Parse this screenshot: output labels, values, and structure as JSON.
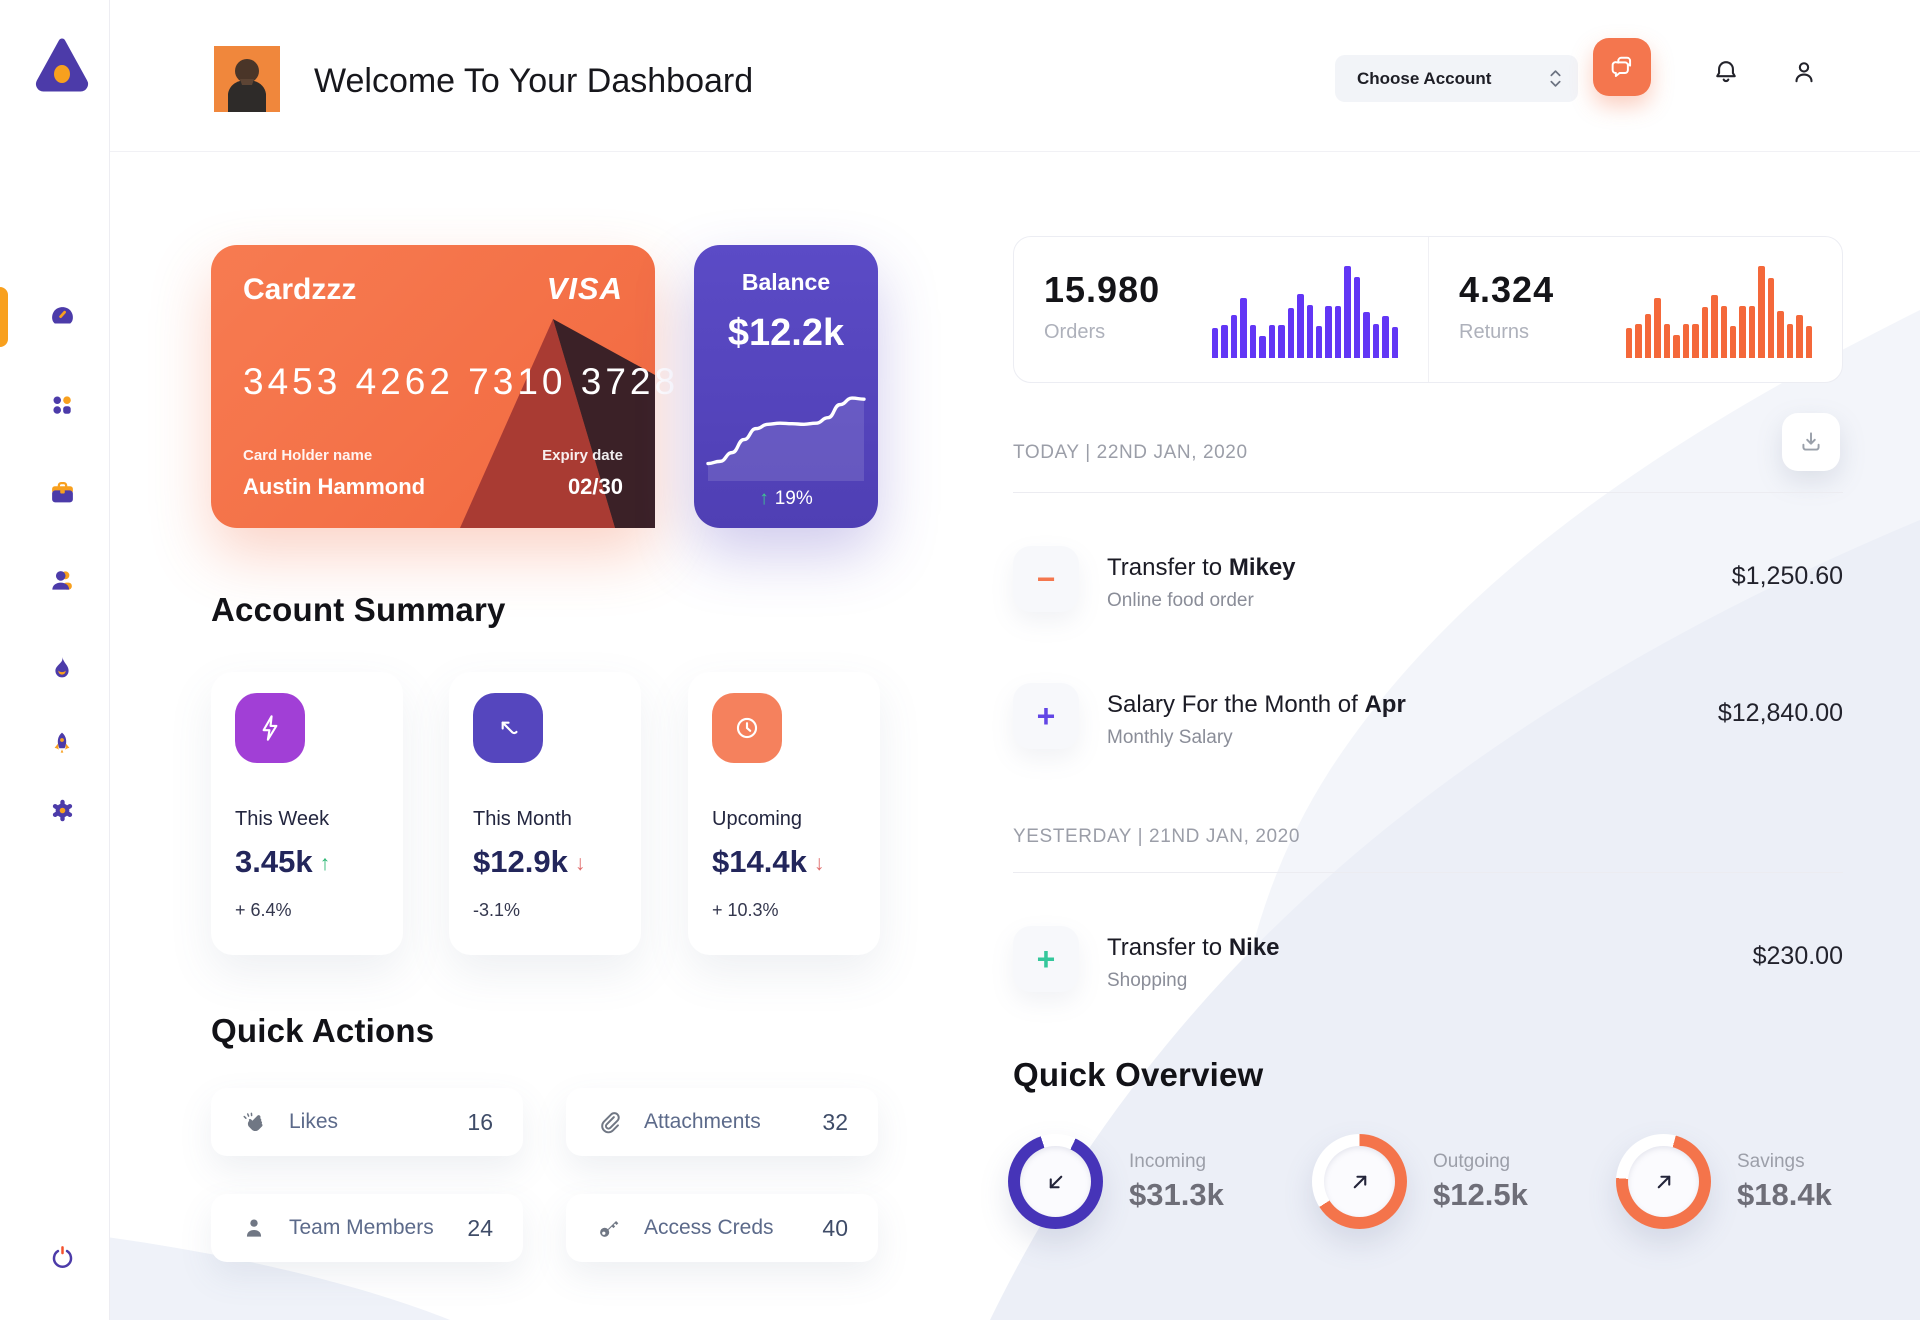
{
  "colors": {
    "orange": "#F4724B",
    "purple": "#5546BE",
    "bar_purple": "#6236F5",
    "bar_orange": "#F4683A",
    "green": "#2BB673",
    "red": "#E06C6C",
    "sidebar_purple": "#4C3BA9",
    "sidebar_orange": "#F8A01E"
  },
  "header": {
    "title": "Welcome To Your Dashboard",
    "account_select_label": "Choose Account"
  },
  "sidebar": {
    "items": [
      {
        "icon": "speedometer-icon",
        "active": true
      },
      {
        "icon": "grid-dots-icon",
        "active": false
      },
      {
        "icon": "briefcase-icon",
        "active": false
      },
      {
        "icon": "users-icon",
        "active": false
      },
      {
        "icon": "flame-icon",
        "active": false
      },
      {
        "icon": "rocket-icon",
        "active": false
      },
      {
        "icon": "gear-icon",
        "active": false
      }
    ]
  },
  "card": {
    "name": "Cardzzz",
    "brand": "VISA",
    "number": "3453 4262 7310 3728",
    "holder_label": "Card Holder name",
    "holder": "Austin Hammond",
    "expiry_label": "Expiry date",
    "expiry": "02/30"
  },
  "balance": {
    "label": "Balance",
    "value": "$12.2k",
    "change_arrow": "↑",
    "change": "19%",
    "spark": [
      1.6,
      1.8,
      2.6,
      3.8,
      4.8,
      5.2,
      5.3,
      5.25,
      5.2,
      5.3,
      5.8,
      7.0,
      7.6,
      7.5
    ]
  },
  "stats": {
    "orders": {
      "value": "15.980",
      "label": "Orders",
      "bars": [
        3.2,
        3.5,
        4.5,
        6.3,
        3.5,
        2.3,
        3.5,
        3.5,
        5.3,
        6.7,
        5.6,
        3.4,
        5.5,
        5.5,
        9.7,
        8.5,
        4.8,
        3.6,
        4.4,
        3.3
      ]
    },
    "returns": {
      "value": "4.324",
      "label": "Returns",
      "bars": [
        3.2,
        3.6,
        4.6,
        6.3,
        3.6,
        2.4,
        3.6,
        3.6,
        5.4,
        6.6,
        5.5,
        3.4,
        5.5,
        5.5,
        9.7,
        8.4,
        4.9,
        3.6,
        4.5,
        3.4
      ]
    }
  },
  "account_summary": {
    "title": "Account Summary",
    "cards": [
      {
        "icon": "lightning-icon",
        "icon_bg": "#A13FD6",
        "label": "This Week",
        "value": "3.45k",
        "arrow": "↑",
        "arrow_color": "#2BB673",
        "delta": "+ 6.4%"
      },
      {
        "icon": "trend-arrow-icon",
        "icon_bg": "#5546BE",
        "label": "This Month",
        "value": "$12.9k",
        "arrow": "↓",
        "arrow_color": "#E06C6C",
        "delta": "-3.1%"
      },
      {
        "icon": "clock-icon",
        "icon_bg": "#F5815D",
        "label": "Upcoming",
        "value": "$14.4k",
        "arrow": "↓",
        "arrow_color": "#E06C6C",
        "delta": "+ 10.3%"
      }
    ]
  },
  "quick_actions": {
    "title": "Quick Actions",
    "items": [
      {
        "icon": "clap-icon",
        "label": "Likes",
        "count": "16"
      },
      {
        "icon": "paperclip-icon",
        "label": "Attachments",
        "count": "32"
      },
      {
        "icon": "member-icon",
        "label": "Team Members",
        "count": "24"
      },
      {
        "icon": "key-icon",
        "label": "Access Creds",
        "count": "40"
      }
    ]
  },
  "transactions": {
    "groups": [
      {
        "date": "TODAY | 22ND JAN, 2020",
        "rows": [
          {
            "sign": "−",
            "sign_color": "#F4774E",
            "title_prefix": "Transfer to ",
            "title_bold": "Mikey",
            "subtitle": "Online food order",
            "amount": "$1,250.60"
          },
          {
            "sign": "+",
            "sign_color": "#6246E5",
            "title_prefix": "Salary For the Month of ",
            "title_bold": "Apr",
            "subtitle": "Monthly Salary",
            "amount": "$12,840.00"
          }
        ]
      },
      {
        "date": "YESTERDAY | 21ND JAN, 2020",
        "rows": [
          {
            "sign": "+",
            "sign_color": "#35C79B",
            "title_prefix": "Transfer to ",
            "title_bold": "Nike",
            "subtitle": "Shopping",
            "amount": "$230.00"
          }
        ]
      }
    ]
  },
  "quick_overview": {
    "title": "Quick Overview",
    "rings": [
      {
        "label": "Incoming",
        "value": "$31.3k",
        "color": "#4634B8",
        "percent": 88,
        "start_deg": 25,
        "arrow": "down-left"
      },
      {
        "label": "Outgoing",
        "value": "$12.5k",
        "color": "#F4744B",
        "percent": 66,
        "start_deg": 0,
        "arrow": "up-right"
      },
      {
        "label": "Savings",
        "value": "$18.4k",
        "color": "#F4744B",
        "percent": 72,
        "start_deg": 15,
        "arrow": "up-right"
      }
    ]
  }
}
